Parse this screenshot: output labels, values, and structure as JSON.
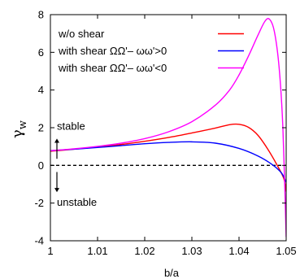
{
  "chart_data": {
    "type": "line",
    "xlabel": "b/a",
    "ylabel": "γ",
    "ylabel_sub": "w",
    "xlim": [
      1.0,
      1.05
    ],
    "ylim": [
      -4,
      8
    ],
    "xticks": [
      "1",
      "1.01",
      "1.02",
      "1.03",
      "1.04",
      "1.05"
    ],
    "xtick_values": [
      1.0,
      1.01,
      1.02,
      1.03,
      1.04,
      1.05
    ],
    "yticks": [
      "-4",
      "-2",
      "0",
      "2",
      "4",
      "6",
      "8"
    ],
    "ytick_values": [
      -4,
      -2,
      0,
      2,
      4,
      6,
      8
    ],
    "grid": false,
    "legend_position": "top-right",
    "reference_line": {
      "y": 0,
      "style": "dashed",
      "color": "#000000"
    },
    "annotations": [
      {
        "text": "stable",
        "arrow": "up"
      },
      {
        "text": "unstable",
        "arrow": "down"
      }
    ],
    "series": [
      {
        "name": "w/o shear",
        "color": "#ff0000",
        "x": [
          1.0,
          1.005,
          1.01,
          1.015,
          1.02,
          1.025,
          1.03,
          1.035,
          1.038,
          1.04,
          1.042,
          1.044,
          1.046,
          1.048,
          1.0495,
          1.05
        ],
        "y": [
          0.75,
          0.86,
          0.98,
          1.11,
          1.28,
          1.48,
          1.72,
          1.98,
          2.16,
          2.18,
          2.02,
          1.6,
          0.9,
          0.05,
          -0.7,
          -1.4
        ]
      },
      {
        "name": "with shear  ΩΩ'– ωω'>0",
        "color": "#0000ff",
        "x": [
          1.0,
          1.005,
          1.01,
          1.015,
          1.02,
          1.025,
          1.03,
          1.035,
          1.04,
          1.044,
          1.047,
          1.049,
          1.05
        ],
        "y": [
          0.78,
          0.86,
          0.95,
          1.05,
          1.15,
          1.22,
          1.25,
          1.18,
          0.9,
          0.5,
          0.05,
          -0.4,
          -0.9
        ]
      },
      {
        "name": "with shear  ΩΩ'– ωω'<0",
        "color": "#ff00ff",
        "x": [
          1.0,
          1.005,
          1.01,
          1.015,
          1.02,
          1.025,
          1.03,
          1.035,
          1.038,
          1.04,
          1.042,
          1.044,
          1.0455,
          1.0465,
          1.0475,
          1.0485,
          1.0493,
          1.05
        ],
        "y": [
          0.78,
          0.88,
          1.01,
          1.18,
          1.42,
          1.78,
          2.32,
          3.2,
          4.0,
          4.8,
          5.8,
          6.9,
          7.65,
          7.75,
          7.1,
          5.2,
          2.0,
          -3.8
        ]
      }
    ]
  }
}
